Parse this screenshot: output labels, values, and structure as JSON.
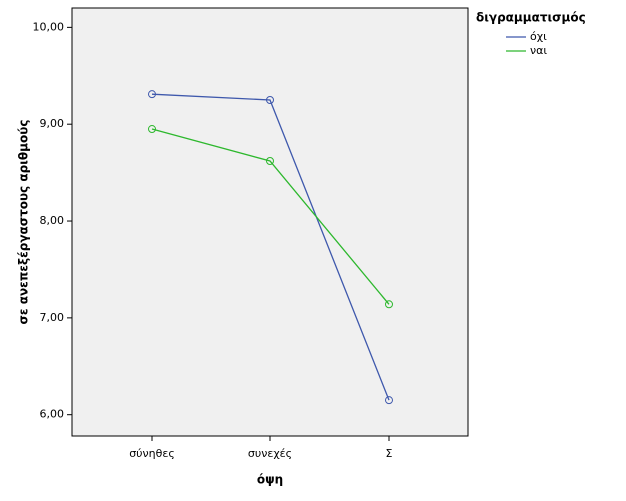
{
  "chart_data": {
    "type": "line",
    "x_label": "όψη",
    "y_label": "σε ανεπεξέργαστους αριθμούς",
    "categories": [
      "σύνηθες",
      "συνεχές",
      "Σ"
    ],
    "series": [
      {
        "name": "όχι",
        "color": "#3e58ac",
        "values": [
          9.31,
          9.25,
          6.15
        ]
      },
      {
        "name": "ναι",
        "color": "#2db82d",
        "values": [
          8.95,
          8.62,
          7.14
        ]
      }
    ],
    "legend_title": "διγραμματισμός",
    "legend_position": "right",
    "ylim": [
      5.78,
      10.2
    ],
    "yticks": [
      {
        "value": 6,
        "label": "6,00"
      },
      {
        "value": 7,
        "label": "7,00"
      },
      {
        "value": 8,
        "label": "8,00"
      },
      {
        "value": 9,
        "label": "9,00"
      },
      {
        "value": 10,
        "label": "10,00"
      }
    ]
  }
}
